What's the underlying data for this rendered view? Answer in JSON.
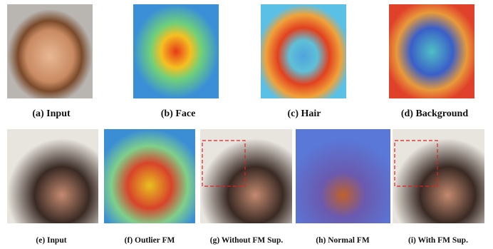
{
  "figure": {
    "top_row": [
      "(a) Input",
      "(b) Face",
      "(c) Hair",
      "(d) Background"
    ],
    "bottom_row": [
      "(e) Input",
      "(f) Outlier FM",
      "(g) Without FM Sup.",
      "(h) Normal FM",
      "(i) With FM Sup."
    ]
  }
}
